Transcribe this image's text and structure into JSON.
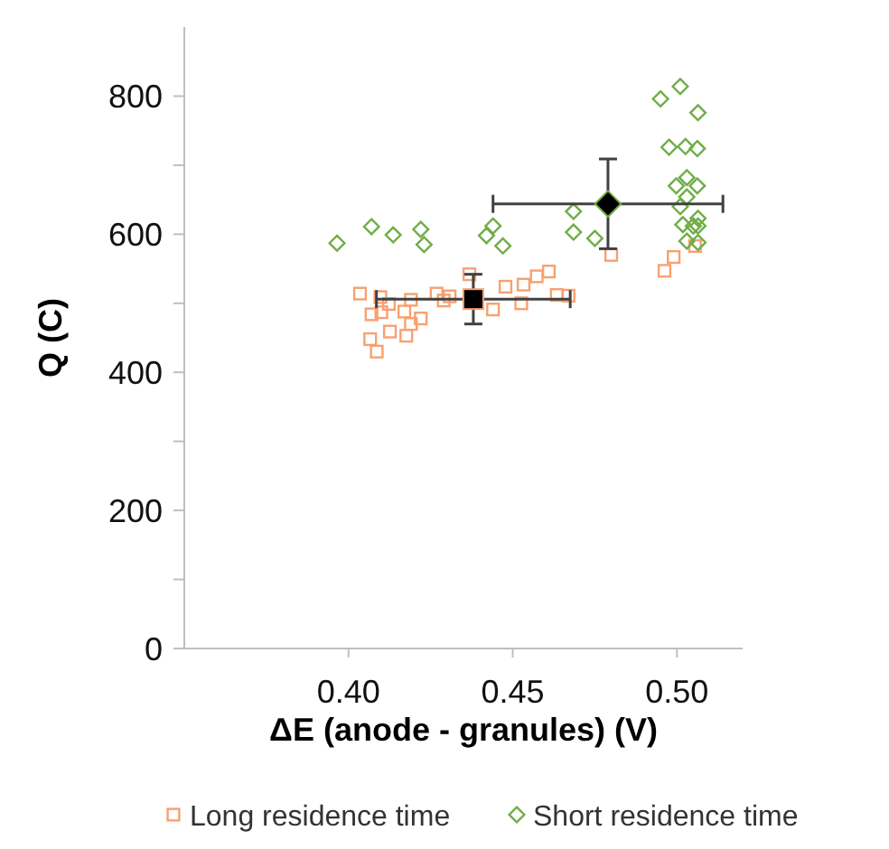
{
  "chart_data": {
    "type": "scatter",
    "xlabel": "ΔE (anode - granules) (V)",
    "ylabel": "Q (C)",
    "xlim": [
      0.35,
      0.52
    ],
    "xticks": [
      {
        "value": 0.4,
        "label": "0.40"
      },
      0.45,
      {
        "value": 0.5,
        "label": "0.50"
      }
    ],
    "ylim": [
      0,
      900
    ],
    "yticks": [
      0,
      {
        "value": 100,
        "label": null
      },
      200,
      {
        "value": 300,
        "label": null
      },
      400,
      {
        "value": 500,
        "label": null
      },
      600,
      {
        "value": 700,
        "label": null
      },
      800
    ],
    "grid": false,
    "legend": "bottom",
    "series": [
      {
        "name": "Long residence time",
        "color": "#f8a070",
        "marker": "square",
        "x": [
          0.4035,
          0.407,
          0.4097,
          0.41,
          0.4123,
          0.4066,
          0.4086,
          0.4126,
          0.4176,
          0.417,
          0.419,
          0.419,
          0.422,
          0.4268,
          0.429,
          0.4308,
          0.4368,
          0.444,
          0.4478,
          0.4526,
          0.4533,
          0.4573,
          0.461,
          0.4634,
          0.467,
          0.48,
          0.499,
          0.4962,
          0.5055
        ],
        "values": [
          514,
          484,
          509,
          487,
          499,
          448,
          430,
          459,
          453,
          488,
          505,
          470,
          478,
          514,
          504,
          510,
          542,
          491,
          524,
          500,
          527,
          539,
          546,
          512,
          511,
          570,
          567,
          547,
          583
        ]
      },
      {
        "name": "Short residence time",
        "color": "#70ad47",
        "marker": "diamond",
        "x": [
          0.3965,
          0.407,
          0.4136,
          0.422,
          0.423,
          0.442,
          0.444,
          0.447,
          0.4685,
          0.4685,
          0.475,
          0.495,
          0.501,
          0.5064,
          0.4976,
          0.5026,
          0.5062,
          0.4998,
          0.503,
          0.5062,
          0.503,
          0.501,
          0.5064,
          0.5018,
          0.505,
          0.5064,
          0.503,
          0.5064
        ],
        "values": [
          587,
          611,
          599,
          607,
          585,
          598,
          612,
          583,
          633,
          603,
          594,
          796,
          814,
          776,
          726,
          727,
          724,
          670,
          682,
          670,
          654,
          640,
          623,
          614,
          612,
          612,
          590,
          588
        ]
      },
      {
        "color": "#000000",
        "marker": "square",
        "x": [
          0.438
        ],
        "values": [
          506
        ],
        "errors": [
          36
        ],
        "xerrors": [
          0.0295
        ]
      },
      {
        "color": "#000000",
        "marker": "diamond",
        "x": [
          0.479
        ],
        "values": [
          644
        ],
        "errors": [
          65
        ],
        "xerrors": [
          0.035
        ]
      }
    ]
  }
}
